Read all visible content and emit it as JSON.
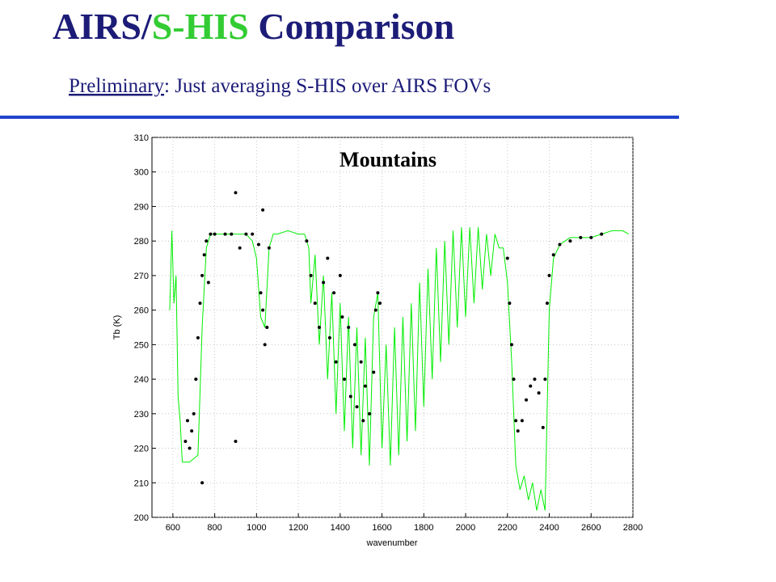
{
  "slide": {
    "title": [
      {
        "text": "AIRS/",
        "color": "#1c1c78"
      },
      {
        "text": "S-HIS",
        "color": "#33cc33"
      },
      {
        "text": " Comparison",
        "color": "#1c1c78"
      }
    ],
    "subtitle": {
      "underlined": "Preliminary",
      "rest": ": Just averaging S-HIS over AIRS FOVs"
    }
  },
  "chart_data": {
    "type": "line",
    "annotation": "Mountains",
    "xlabel": "wavenumber",
    "ylabel": "Tb (K)",
    "xlim": [
      500,
      2800
    ],
    "ylim": [
      200,
      310
    ],
    "xticks": [
      600,
      800,
      1000,
      1200,
      1400,
      1600,
      1800,
      2000,
      2200,
      2400,
      2600,
      2800
    ],
    "yticks": [
      200,
      210,
      220,
      230,
      240,
      250,
      260,
      270,
      280,
      290,
      300,
      310
    ],
    "grid": true,
    "series": [
      {
        "type": "line",
        "color": "#00ee00",
        "x": [
          585,
          595,
          605,
          615,
          625,
          635,
          645,
          660,
          680,
          700,
          720,
          740,
          760,
          780,
          800,
          850,
          900,
          950,
          980,
          1000,
          1020,
          1040,
          1060,
          1080,
          1100,
          1150,
          1200,
          1230,
          1250,
          1260,
          1280,
          1300,
          1320,
          1340,
          1360,
          1380,
          1400,
          1420,
          1440,
          1460,
          1480,
          1500,
          1520,
          1540,
          1560,
          1580,
          1600,
          1620,
          1640,
          1660,
          1680,
          1700,
          1720,
          1740,
          1760,
          1780,
          1800,
          1820,
          1840,
          1860,
          1880,
          1900,
          1920,
          1940,
          1960,
          1980,
          2000,
          2020,
          2040,
          2060,
          2080,
          2100,
          2120,
          2140,
          2160,
          2180,
          2200,
          2220,
          2240,
          2260,
          2280,
          2300,
          2320,
          2340,
          2360,
          2380,
          2400,
          2420,
          2450,
          2500,
          2550,
          2600,
          2650,
          2700,
          2750,
          2780
        ],
        "values": [
          260,
          283,
          262,
          270,
          235,
          228,
          216,
          216,
          216,
          217,
          218,
          255,
          278,
          282,
          282,
          282,
          282,
          282,
          280,
          275,
          258,
          255,
          278,
          282,
          282,
          283,
          282,
          282,
          278,
          262,
          276,
          250,
          270,
          240,
          265,
          230,
          262,
          225,
          258,
          220,
          255,
          218,
          252,
          215,
          258,
          265,
          220,
          250,
          215,
          255,
          218,
          258,
          222,
          262,
          225,
          268,
          232,
          272,
          240,
          278,
          245,
          280,
          250,
          283,
          255,
          284,
          258,
          284,
          262,
          284,
          266,
          282,
          270,
          282,
          278,
          278,
          268,
          245,
          215,
          208,
          212,
          205,
          210,
          202,
          208,
          202,
          260,
          275,
          279,
          281,
          281,
          281,
          282,
          283,
          283,
          282
        ]
      },
      {
        "type": "scatter",
        "color": "#000000",
        "x": [
          660,
          670,
          680,
          690,
          700,
          710,
          720,
          730,
          740,
          750,
          760,
          780,
          800,
          850,
          880,
          900,
          920,
          950,
          980,
          1010,
          1020,
          1030,
          1040,
          1050,
          1060,
          1030,
          900,
          740,
          770,
          1240,
          1260,
          1280,
          1300,
          1320,
          1340,
          1350,
          1370,
          1380,
          1400,
          1410,
          1420,
          1440,
          1450,
          1470,
          1480,
          1500,
          1510,
          1520,
          1540,
          1560,
          1570,
          1580,
          1590,
          2200,
          2210,
          2220,
          2230,
          2240,
          2250,
          2270,
          2290,
          2310,
          2330,
          2350,
          2370,
          2380,
          2390,
          2400,
          2420,
          2450,
          2500,
          2550,
          2600,
          2650
        ],
        "values": [
          222,
          228,
          220,
          225,
          230,
          240,
          252,
          262,
          270,
          276,
          280,
          282,
          282,
          282,
          282,
          294,
          278,
          282,
          282,
          279,
          265,
          260,
          250,
          255,
          278,
          289,
          222,
          210,
          268,
          280,
          270,
          262,
          255,
          268,
          275,
          252,
          265,
          245,
          270,
          258,
          240,
          255,
          235,
          250,
          232,
          245,
          228,
          238,
          230,
          242,
          260,
          265,
          262,
          275,
          262,
          250,
          240,
          228,
          225,
          228,
          234,
          238,
          240,
          236,
          226,
          240,
          262,
          270,
          276,
          279,
          280,
          281,
          281,
          282
        ]
      }
    ]
  }
}
